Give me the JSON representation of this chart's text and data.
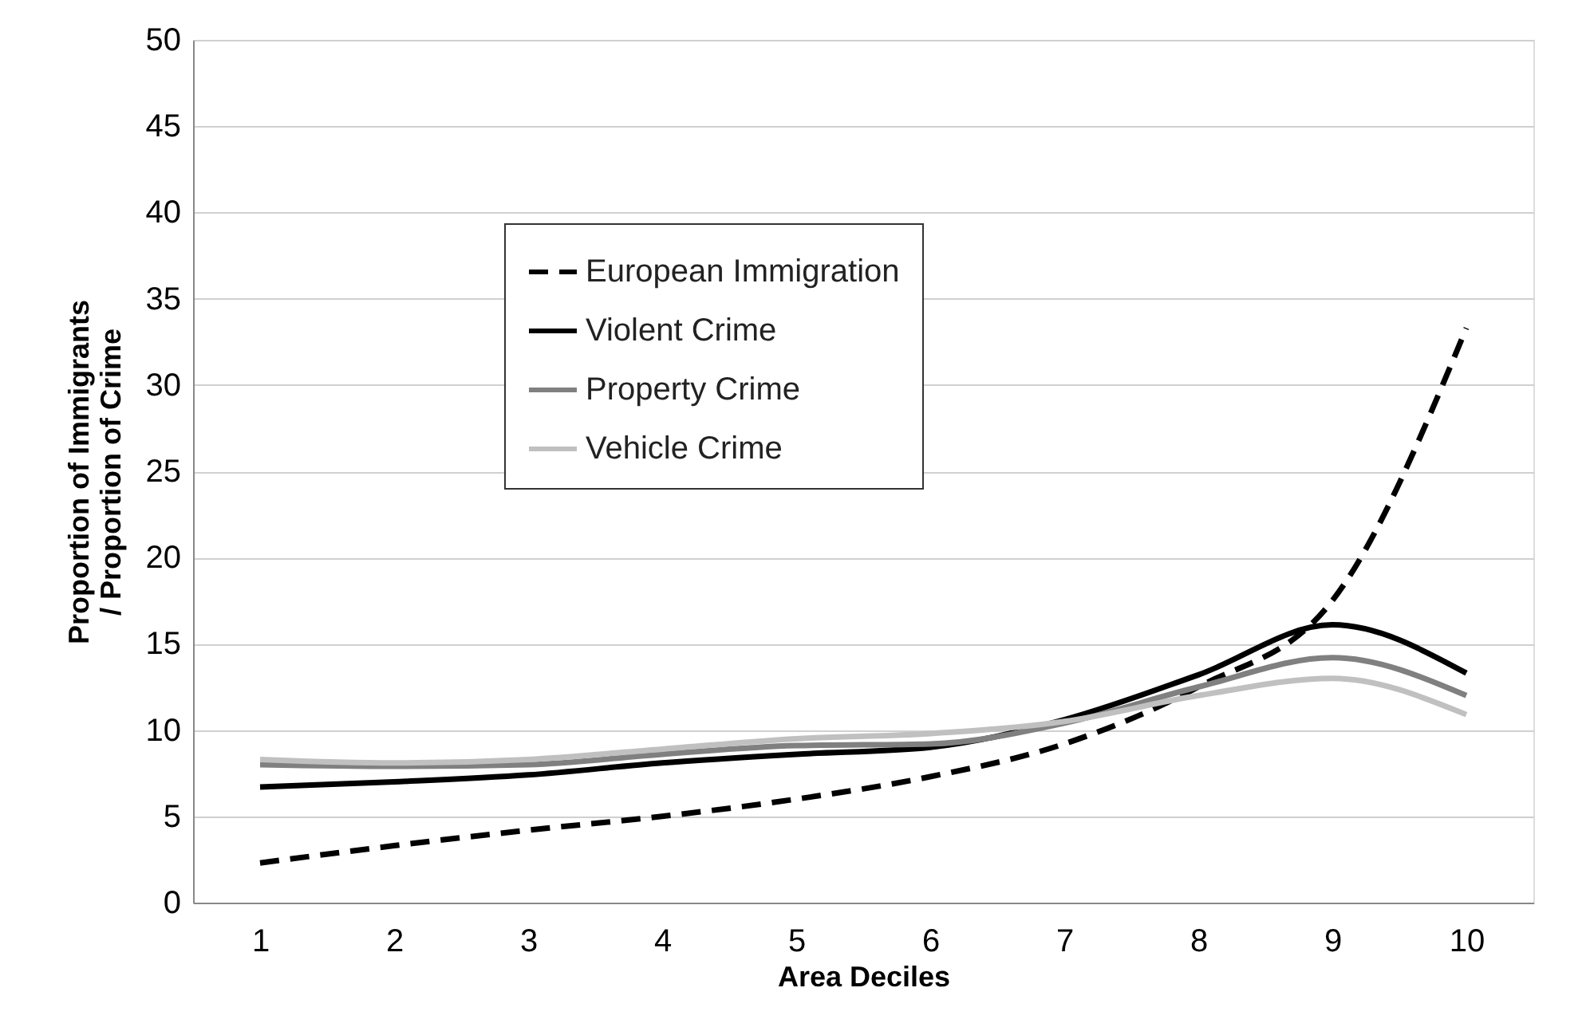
{
  "chart_data": {
    "type": "line",
    "xlabel": "Area Deciles",
    "ylabel": "Proportion of Immigrants\n/ Proportion of Crime",
    "categories": [
      "1",
      "2",
      "3",
      "4",
      "5",
      "6",
      "7",
      "8",
      "9",
      "10"
    ],
    "ylim": [
      0,
      50
    ],
    "yticks": [
      0,
      5,
      10,
      15,
      20,
      25,
      30,
      35,
      40,
      45,
      50
    ],
    "grid": "y",
    "legend": "top left",
    "marker": "none",
    "series": [
      {
        "name": "European Immigration",
        "color": "#000000",
        "line_style": "dashed",
        "values": [
          2.3,
          3.3,
          4.2,
          5.0,
          6.0,
          7.3,
          9.2,
          12.5,
          17.5,
          33.3
        ]
      },
      {
        "name": "Violent Crime",
        "color": "#000000",
        "line_style": "solid",
        "values": [
          6.7,
          7.0,
          7.4,
          8.1,
          8.6,
          9.0,
          10.6,
          13.2,
          16.1,
          13.3
        ]
      },
      {
        "name": "Property Crime",
        "color": "#808080",
        "line_style": "solid",
        "values": [
          8.0,
          7.9,
          8.0,
          8.6,
          9.1,
          9.2,
          10.4,
          12.5,
          14.2,
          12.0
        ]
      },
      {
        "name": "Vehicle Crime",
        "color": "#c0c0c0",
        "line_style": "solid",
        "values": [
          8.3,
          8.1,
          8.3,
          8.9,
          9.5,
          9.8,
          10.5,
          12.0,
          13.0,
          10.9
        ]
      }
    ]
  }
}
